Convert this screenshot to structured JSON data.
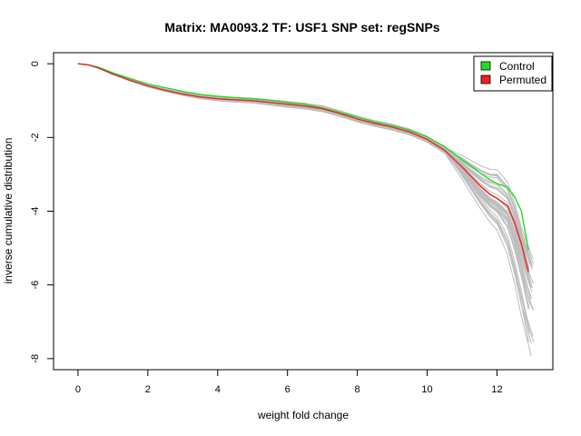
{
  "chart_data": {
    "type": "line",
    "title": "Matrix: MA0093.2 TF: USF1 SNP set: regSNPs",
    "xlabel": "weight fold change",
    "ylabel": "inverse cumulative distribution",
    "xlim": [
      -0.7,
      13.6
    ],
    "ylim": [
      -8.3,
      0.3
    ],
    "x_ticks": [
      0,
      2,
      4,
      6,
      8,
      10,
      12
    ],
    "y_ticks": [
      0,
      -2,
      -4,
      -6,
      -8
    ],
    "grid": false,
    "legend_position": "top-right",
    "legend": [
      {
        "label": "Control",
        "color": "#22dd22"
      },
      {
        "label": "Permuted",
        "color": "#ee2222"
      }
    ],
    "series": [
      {
        "name": "Control",
        "color": "#22dd22",
        "x": [
          0,
          0.3,
          0.6,
          1.0,
          1.5,
          2.0,
          2.5,
          3.0,
          3.5,
          4.0,
          4.5,
          5.0,
          5.5,
          6.0,
          6.5,
          7.0,
          7.5,
          8.0,
          8.5,
          9.0,
          9.5,
          10.0,
          10.5,
          11.0,
          11.5,
          11.8,
          12.0,
          12.3,
          12.5,
          12.7,
          12.9
        ],
        "y": [
          0,
          -0.03,
          -0.1,
          -0.25,
          -0.4,
          -0.55,
          -0.65,
          -0.75,
          -0.83,
          -0.88,
          -0.92,
          -0.95,
          -0.99,
          -1.05,
          -1.1,
          -1.2,
          -1.32,
          -1.45,
          -1.58,
          -1.68,
          -1.8,
          -1.98,
          -2.25,
          -2.6,
          -2.95,
          -3.15,
          -3.25,
          -3.35,
          -3.6,
          -4.0,
          -5.05
        ]
      },
      {
        "name": "Permuted",
        "color": "#ee2222",
        "x": [
          0,
          0.3,
          0.6,
          1.0,
          1.5,
          2.0,
          2.5,
          3.0,
          3.5,
          4.0,
          4.5,
          5.0,
          5.5,
          6.0,
          6.5,
          7.0,
          7.5,
          8.0,
          8.5,
          9.0,
          9.5,
          10.0,
          10.5,
          11.0,
          11.5,
          11.8,
          12.0,
          12.3,
          12.5,
          12.7,
          12.9
        ],
        "y": [
          0,
          -0.03,
          -0.12,
          -0.28,
          -0.45,
          -0.6,
          -0.72,
          -0.82,
          -0.9,
          -0.95,
          -0.98,
          -1.0,
          -1.05,
          -1.1,
          -1.15,
          -1.22,
          -1.35,
          -1.5,
          -1.62,
          -1.72,
          -1.85,
          -2.05,
          -2.35,
          -2.8,
          -3.3,
          -3.55,
          -3.65,
          -3.85,
          -4.3,
          -4.9,
          -5.65
        ]
      }
    ]
  }
}
